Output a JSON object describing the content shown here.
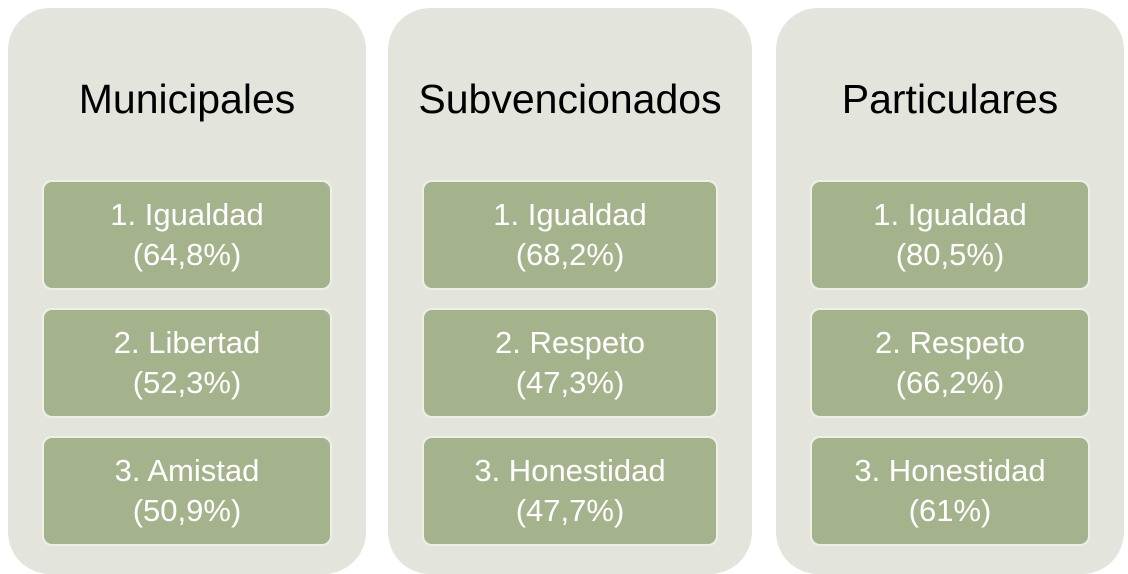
{
  "columns": [
    {
      "title": "Municipales",
      "items": [
        {
          "label": "1. Igualdad",
          "value": "(64,8%)"
        },
        {
          "label": "2. Libertad",
          "value": "(52,3%)"
        },
        {
          "label": "3. Amistad",
          "value": "(50,9%)"
        }
      ]
    },
    {
      "title": "Subvencionados",
      "items": [
        {
          "label": "1. Igualdad",
          "value": "(68,2%)"
        },
        {
          "label": "2. Respeto",
          "value": "(47,3%)"
        },
        {
          "label": "3. Honestidad",
          "value": "(47,7%)"
        }
      ]
    },
    {
      "title": "Particulares",
      "items": [
        {
          "label": "1. Igualdad",
          "value": "(80,5%)"
        },
        {
          "label": "2. Respeto",
          "value": "(66,2%)"
        },
        {
          "label": "3. Honestidad",
          "value": "(61%)"
        }
      ]
    }
  ]
}
